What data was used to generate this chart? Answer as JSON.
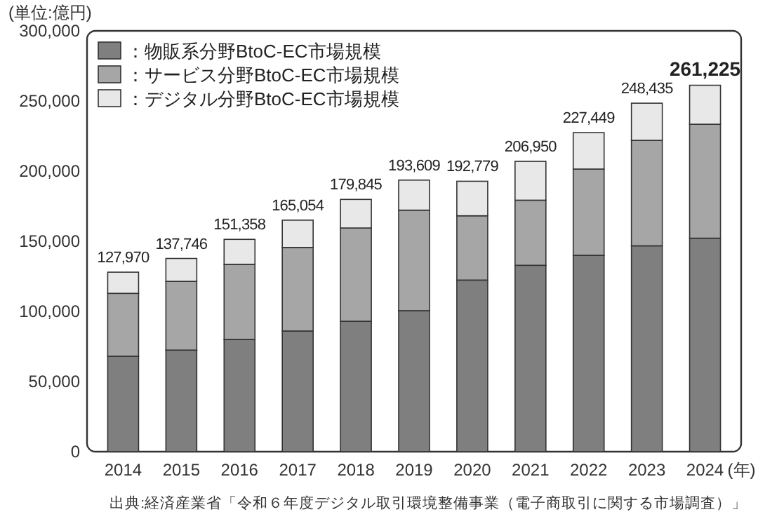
{
  "chart_data": {
    "type": "bar",
    "stacked": true,
    "ylabel": "(単位:億円)",
    "xlabel": "(年)",
    "categories": [
      "2014",
      "2015",
      "2016",
      "2017",
      "2018",
      "2019",
      "2020",
      "2021",
      "2022",
      "2023",
      "2024"
    ],
    "series": [
      {
        "name": "：物販系分野BtoC-EC市場規模",
        "color": "#7f7f7f",
        "values": [
          68043,
          72398,
          80043,
          86008,
          92992,
          100515,
          122333,
          132865,
          139997,
          146760,
          152194
        ]
      },
      {
        "name": "：サービス分野BtoC-EC市場規模",
        "color": "#a6a6a6",
        "values": [
          44816,
          49014,
          53532,
          59568,
          66471,
          71672,
          45832,
          46424,
          61477,
          75169,
          81225
        ]
      },
      {
        "name": "：デジタル分野BtoC-EC市場規模",
        "color": "#e8e8e8",
        "values": [
          15111,
          16334,
          17783,
          19478,
          20382,
          21422,
          24614,
          27661,
          25975,
          26506,
          27806
        ]
      }
    ],
    "totals": [
      "127,970",
      "137,746",
      "151,358",
      "165,054",
      "179,845",
      "193,609",
      "192,779",
      "206,950",
      "227,449",
      "248,435",
      "261,225"
    ],
    "ylim": [
      0,
      300000
    ],
    "yticks": [
      0,
      {
        "value": 50000,
        "label": "50,000"
      },
      {
        "value": 100000,
        "label": "100,000"
      },
      {
        "value": 150000,
        "label": "150,000"
      },
      {
        "value": 200000,
        "label": "200,000"
      },
      {
        "value": 250000,
        "label": "250,000"
      },
      {
        "value": 300000,
        "label": "300,000"
      }
    ],
    "legend": "top left",
    "grid": false,
    "annotations": [
      "出典:経済産業省「令和６年度デジタル取引環境整備事業（電子商取引に関する市場調査）」"
    ]
  }
}
